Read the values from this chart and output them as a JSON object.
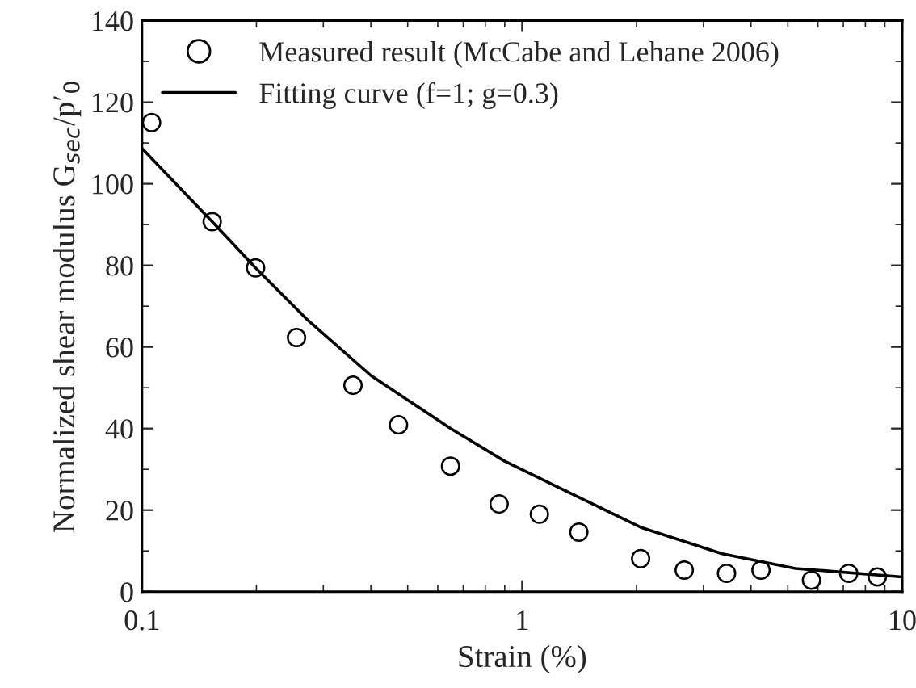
{
  "chart_data": {
    "type": "scatter",
    "xlabel": "Strain (%)",
    "ylabel": "Normalized shear modulus G$_{sec}$/p′$_{0}$",
    "log": "x",
    "xlim": [
      0.1,
      10
    ],
    "xticks": [
      0.1,
      1,
      10
    ],
    "ylim": [
      0,
      140
    ],
    "yticks": [
      0,
      20,
      40,
      60,
      80,
      100,
      120,
      140
    ],
    "grid": false,
    "legend": "top left",
    "series": [
      {
        "name": "Measured result (McCabe and Lehane 2006)",
        "marker": "circle",
        "color": "#000000",
        "x": [
          0.106,
          0.153,
          0.199,
          0.255,
          0.359,
          0.473,
          0.648,
          0.87,
          1.11,
          1.41,
          2.05,
          2.67,
          3.45,
          4.25,
          5.77,
          7.23,
          8.6
        ],
        "values": [
          115,
          90.7,
          79.4,
          62.3,
          50.6,
          40.9,
          30.8,
          21.5,
          19.0,
          14.6,
          8.1,
          5.3,
          4.5,
          5.3,
          2.8,
          4.5,
          3.6
        ]
      },
      {
        "name": "Fitting curve (f=1; g=0.3)",
        "type": "line",
        "marker": "none",
        "line_style": "solid",
        "color": "#000000",
        "x": [
          0.1,
          0.153,
          0.199,
          0.27,
          0.4,
          0.649,
          0.9,
          1.25,
          2.05,
          3.36,
          5.24,
          10
        ],
        "values": [
          108.7,
          90.7,
          79.4,
          67,
          53,
          40,
          32,
          25.5,
          15.8,
          9.3,
          5.7,
          3.6
        ]
      }
    ]
  }
}
